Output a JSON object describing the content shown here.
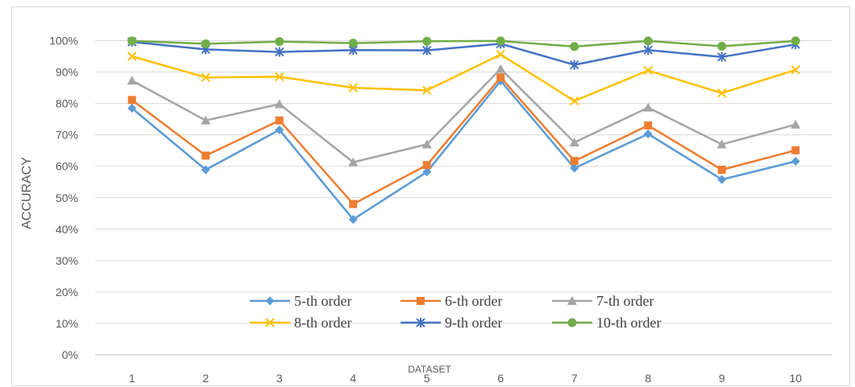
{
  "chart_data": {
    "type": "line",
    "title": "",
    "xlabel": "DATASET",
    "ylabel": "ACCURACY",
    "x": [
      "1",
      "2",
      "3",
      "4",
      "5",
      "6",
      "7",
      "8",
      "9",
      "10"
    ],
    "ylim": [
      0,
      100
    ],
    "y_ticks": [
      "0%",
      "10%",
      "20%",
      "30%",
      "40%",
      "50%",
      "60%",
      "70%",
      "80%",
      "90%",
      "100%"
    ],
    "grid": true,
    "legend_position": "bottom-center",
    "series": [
      {
        "name": "5-th order",
        "color": "#5b9bd5",
        "marker": "diamond",
        "values": [
          78.5,
          58.9,
          71.6,
          43.1,
          58.2,
          87.2,
          59.4,
          70.3,
          55.8,
          61.6
        ]
      },
      {
        "name": "6-th order",
        "color": "#ed7d31",
        "marker": "square",
        "values": [
          81.1,
          63.4,
          74.6,
          48.0,
          60.4,
          88.3,
          61.7,
          73.0,
          58.9,
          65.1
        ]
      },
      {
        "name": "7-th order",
        "color": "#a5a5a5",
        "marker": "triangle",
        "values": [
          87.3,
          74.6,
          79.8,
          61.3,
          67.0,
          91.0,
          67.6,
          78.7,
          67.0,
          73.3
        ]
      },
      {
        "name": "8-th order",
        "color": "#ffc000",
        "marker": "x",
        "values": [
          95.0,
          88.3,
          88.5,
          85.0,
          84.2,
          95.6,
          80.8,
          90.5,
          83.3,
          90.7
        ]
      },
      {
        "name": "9-th order",
        "color": "#4472c4",
        "marker": "star",
        "values": [
          99.6,
          97.2,
          96.4,
          97.0,
          96.9,
          99.0,
          92.3,
          97.0,
          94.8,
          98.8
        ]
      },
      {
        "name": "10-th order",
        "color": "#70ad47",
        "marker": "circle",
        "values": [
          99.9,
          99.0,
          99.7,
          99.2,
          99.8,
          99.9,
          98.1,
          99.9,
          98.2,
          99.9
        ]
      }
    ]
  }
}
